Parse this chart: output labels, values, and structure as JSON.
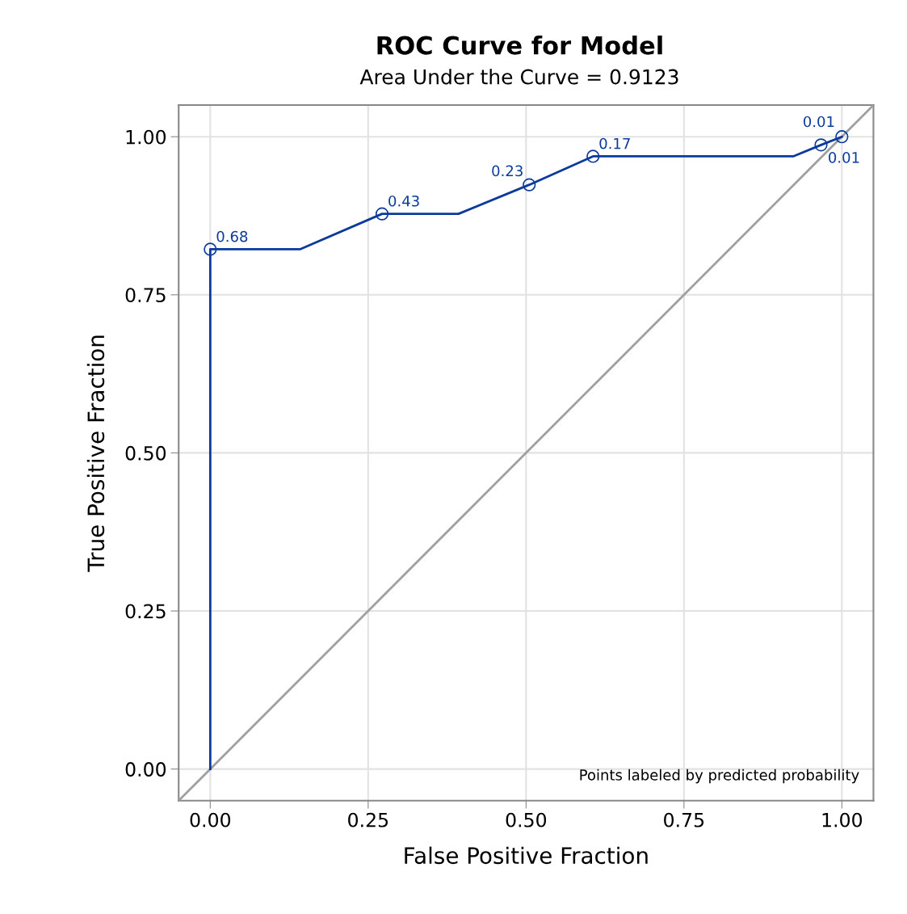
{
  "chart_data": {
    "type": "line",
    "title": "ROC Curve for Model",
    "subtitle": "Area Under the Curve = 0.9123",
    "xlabel": "False Positive Fraction",
    "ylabel": "True Positive Fraction",
    "series": [
      {
        "color": "#a0a0a0",
        "x": [
          -0.05,
          1.05
        ],
        "values": [
          -0.05,
          1.05
        ]
      },
      {
        "color": "#0b3a9c",
        "x": [
          0,
          0,
          0.142,
          0.272,
          0.393,
          0.505,
          0.606,
          0.923,
          0.967,
          1
        ],
        "values": [
          0,
          0.822,
          0.822,
          0.878,
          0.878,
          0.924,
          0.969,
          0.969,
          0.987,
          1
        ]
      },
      {
        "type": "scatter",
        "color": "#0b3a9c",
        "marker": "circle",
        "x": [
          0,
          0.272,
          0.505,
          0.606,
          0.967,
          1
        ],
        "values": [
          0.822,
          0.878,
          0.924,
          0.969,
          0.987,
          1
        ]
      }
    ],
    "xlim": [
      -0.05,
      1.05
    ],
    "ylim": [
      -0.05,
      1.05
    ],
    "xticks": [
      {
        "value": 0,
        "label": "0.00"
      },
      {
        "value": 0.25,
        "label": "0.25"
      },
      {
        "value": 0.5,
        "label": "0.50"
      },
      {
        "value": 0.75,
        "label": "0.75"
      },
      {
        "value": 1,
        "label": "1.00"
      }
    ],
    "yticks": [
      {
        "value": 0,
        "label": "0.00"
      },
      {
        "value": 0.25,
        "label": "0.25"
      },
      {
        "value": 0.5,
        "label": "0.50"
      },
      {
        "value": 0.75,
        "label": "0.75"
      },
      {
        "value": 1,
        "label": "1.00"
      }
    ],
    "grid": true,
    "annotations": [
      {
        "text": "0.68",
        "x": 0,
        "y": 0.822
      },
      {
        "text": "0.43",
        "x": 0.272,
        "y": 0.878
      },
      {
        "text": "0.23",
        "x": 0.505,
        "y": 0.924
      },
      {
        "text": "0.17",
        "x": 0.606,
        "y": 0.969
      },
      {
        "text": "0.01",
        "x": 0.967,
        "y": 0.987
      },
      {
        "text": "0.01",
        "x": 1,
        "y": 1
      },
      "Points labeled by predicted probability"
    ]
  }
}
